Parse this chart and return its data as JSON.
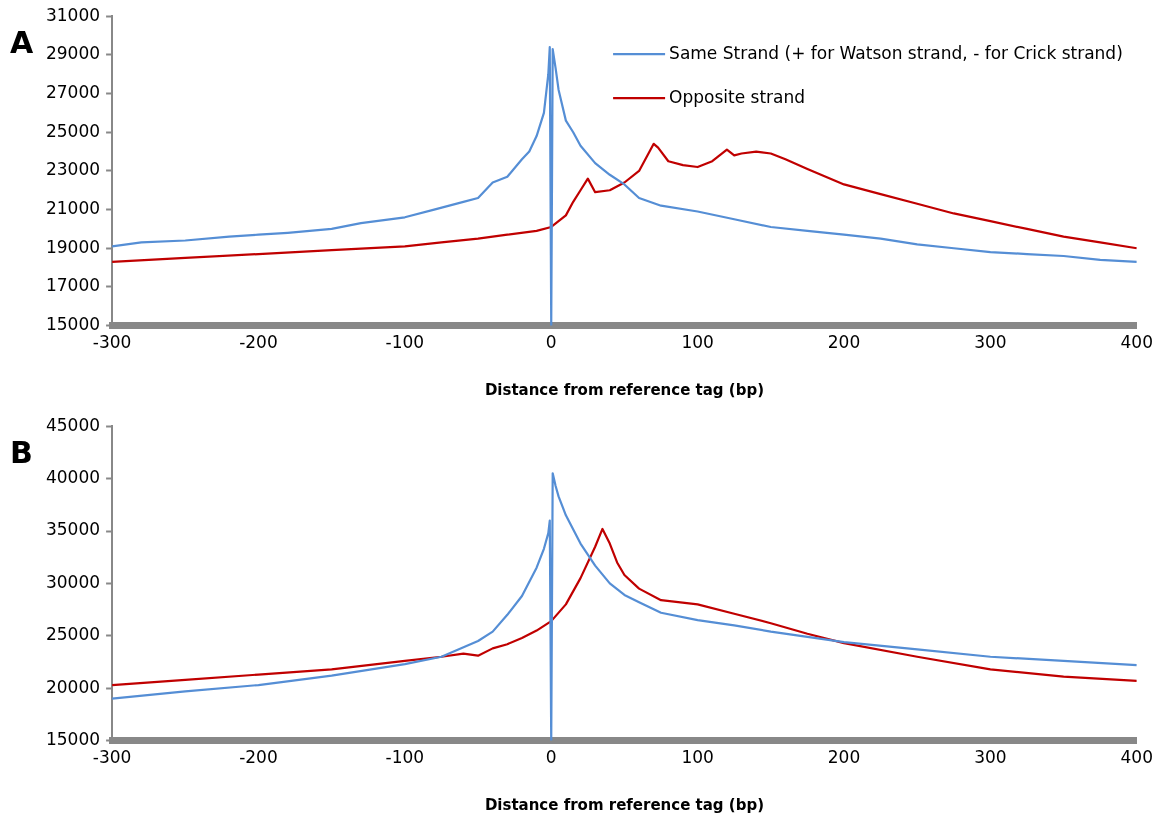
{
  "chart_data": [
    {
      "type": "line",
      "xlabel": "Distance from reference tag (bp)",
      "annotations": [
        "A"
      ],
      "xlim": [
        -300,
        400
      ],
      "xticks": [
        -300,
        -200,
        -100,
        0,
        100,
        200,
        300,
        400
      ],
      "ylim": [
        15000,
        31000
      ],
      "yticks": [
        15000,
        17000,
        19000,
        21000,
        23000,
        25000,
        27000,
        29000,
        31000
      ],
      "grid": false,
      "legend": "top right",
      "marker": "none",
      "line_style": "solid",
      "series": [
        {
          "name": "Same Strand (+ for Watson strand, - for Crick strand)",
          "color": "#558ed5",
          "x": [
            -300,
            -280,
            -250,
            -220,
            -200,
            -180,
            -150,
            -130,
            -100,
            -80,
            -60,
            -50,
            -40,
            -30,
            -20,
            -15,
            -10,
            -5,
            -2,
            -1,
            0,
            1,
            3,
            5,
            10,
            15,
            20,
            30,
            40,
            50,
            60,
            75,
            100,
            125,
            150,
            175,
            200,
            225,
            250,
            275,
            300,
            325,
            350,
            375,
            400
          ],
          "values": [
            19100,
            19300,
            19400,
            19600,
            19700,
            19800,
            20000,
            20300,
            20600,
            21000,
            21400,
            21600,
            22400,
            22700,
            23600,
            24000,
            24800,
            26000,
            28000,
            29400,
            15000,
            29300,
            28300,
            27200,
            25600,
            25000,
            24300,
            23400,
            22800,
            22300,
            21600,
            21200,
            20900,
            20500,
            20100,
            19900,
            19700,
            19500,
            19200,
            19000,
            18800,
            18700,
            18600,
            18400,
            18300
          ]
        },
        {
          "name": "Opposite strand",
          "color": "#c00000",
          "x": [
            -300,
            -250,
            -200,
            -150,
            -100,
            -75,
            -50,
            -30,
            -10,
            0,
            10,
            15,
            20,
            25,
            30,
            40,
            50,
            60,
            70,
            73,
            80,
            90,
            100,
            110,
            120,
            125,
            130,
            140,
            150,
            160,
            175,
            200,
            225,
            250,
            275,
            300,
            325,
            350,
            375,
            400
          ],
          "values": [
            18300,
            18500,
            18700,
            18900,
            19100,
            19300,
            19500,
            19700,
            19900,
            20100,
            20700,
            21400,
            22000,
            22600,
            21900,
            22000,
            22400,
            23000,
            24400,
            24200,
            23500,
            23300,
            23200,
            23500,
            24100,
            23800,
            23900,
            24000,
            23900,
            23600,
            23100,
            22300,
            21800,
            21300,
            20800,
            20400,
            20000,
            19600,
            19300,
            19000
          ]
        }
      ]
    },
    {
      "type": "line",
      "xlabel": "Distance from reference tag (bp)",
      "annotations": [
        "B"
      ],
      "xlim": [
        -300,
        400
      ],
      "xticks": [
        -300,
        -200,
        -100,
        0,
        100,
        200,
        300,
        400
      ],
      "ylim": [
        15000,
        45000
      ],
      "yticks": [
        15000,
        20000,
        25000,
        30000,
        35000,
        40000,
        45000
      ],
      "grid": false,
      "marker": "none",
      "line_style": "solid",
      "series": [
        {
          "color": "#558ed5",
          "x": [
            -300,
            -250,
            -200,
            -150,
            -100,
            -75,
            -50,
            -40,
            -30,
            -20,
            -10,
            -5,
            -2,
            -1,
            0,
            1,
            3,
            5,
            10,
            20,
            30,
            40,
            50,
            60,
            75,
            100,
            125,
            150,
            175,
            200,
            250,
            300,
            350,
            400
          ],
          "values": [
            19000,
            19700,
            20300,
            21200,
            22300,
            23000,
            24500,
            25400,
            27000,
            28800,
            31500,
            33300,
            34800,
            36000,
            15000,
            40500,
            39300,
            38300,
            36500,
            33800,
            31700,
            30000,
            28900,
            28200,
            27200,
            26500,
            26000,
            25400,
            24900,
            24400,
            23700,
            23000,
            22600,
            22200
          ]
        },
        {
          "color": "#c00000",
          "x": [
            -300,
            -250,
            -200,
            -150,
            -100,
            -75,
            -60,
            -50,
            -40,
            -30,
            -20,
            -10,
            0,
            10,
            20,
            30,
            35,
            40,
            45,
            50,
            60,
            75,
            100,
            125,
            150,
            175,
            200,
            250,
            300,
            350,
            400
          ],
          "values": [
            20300,
            20800,
            21300,
            21800,
            22600,
            23000,
            23300,
            23100,
            23800,
            24200,
            24800,
            25500,
            26400,
            28000,
            30500,
            33500,
            35200,
            33800,
            32000,
            30800,
            29500,
            28400,
            28000,
            27100,
            26200,
            25200,
            24300,
            23000,
            21800,
            21100,
            20700
          ]
        }
      ]
    }
  ]
}
